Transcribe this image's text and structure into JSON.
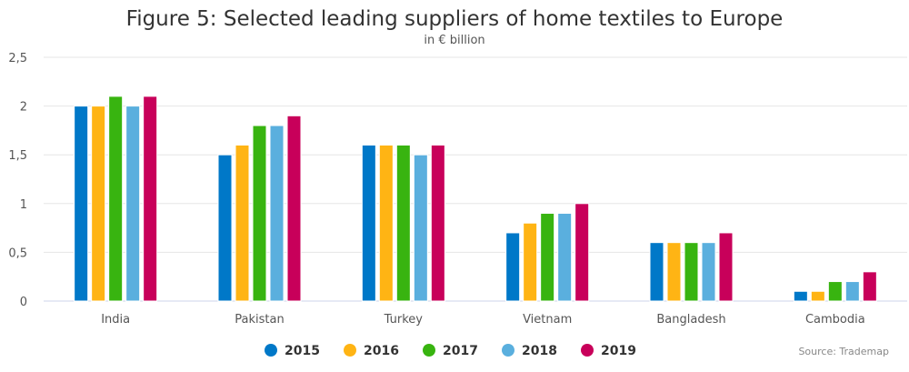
{
  "chart_data": {
    "type": "bar",
    "title": "Figure 5: Selected leading suppliers of home textiles to Europe",
    "subtitle": "in € billion",
    "xlabel": "",
    "ylabel": "",
    "ylim": [
      0,
      2.5
    ],
    "yticks": [
      "0",
      "0,5",
      "1",
      "1,5",
      "2",
      "2,5"
    ],
    "ytick_values": [
      0,
      0.5,
      1,
      1.5,
      2,
      2.5
    ],
    "grid": true,
    "legend_position": "bottom-center",
    "categories": [
      "India",
      "Pakistan",
      "Turkey",
      "Vietnam",
      "Bangladesh",
      "Cambodia"
    ],
    "series": [
      {
        "name": "2015",
        "color": "#0078c8",
        "values": [
          2.0,
          1.5,
          1.6,
          0.7,
          0.6,
          0.1
        ]
      },
      {
        "name": "2016",
        "color": "#ffb414",
        "values": [
          2.0,
          1.6,
          1.6,
          0.8,
          0.6,
          0.1
        ]
      },
      {
        "name": "2017",
        "color": "#38b410",
        "values": [
          2.1,
          1.8,
          1.6,
          0.9,
          0.6,
          0.2
        ]
      },
      {
        "name": "2018",
        "color": "#5aafde",
        "values": [
          2.0,
          1.8,
          1.5,
          0.9,
          0.6,
          0.2
        ]
      },
      {
        "name": "2019",
        "color": "#c8005a",
        "values": [
          2.1,
          1.9,
          1.6,
          1.0,
          0.7,
          0.3
        ]
      }
    ],
    "source": "Source: Trademap"
  }
}
